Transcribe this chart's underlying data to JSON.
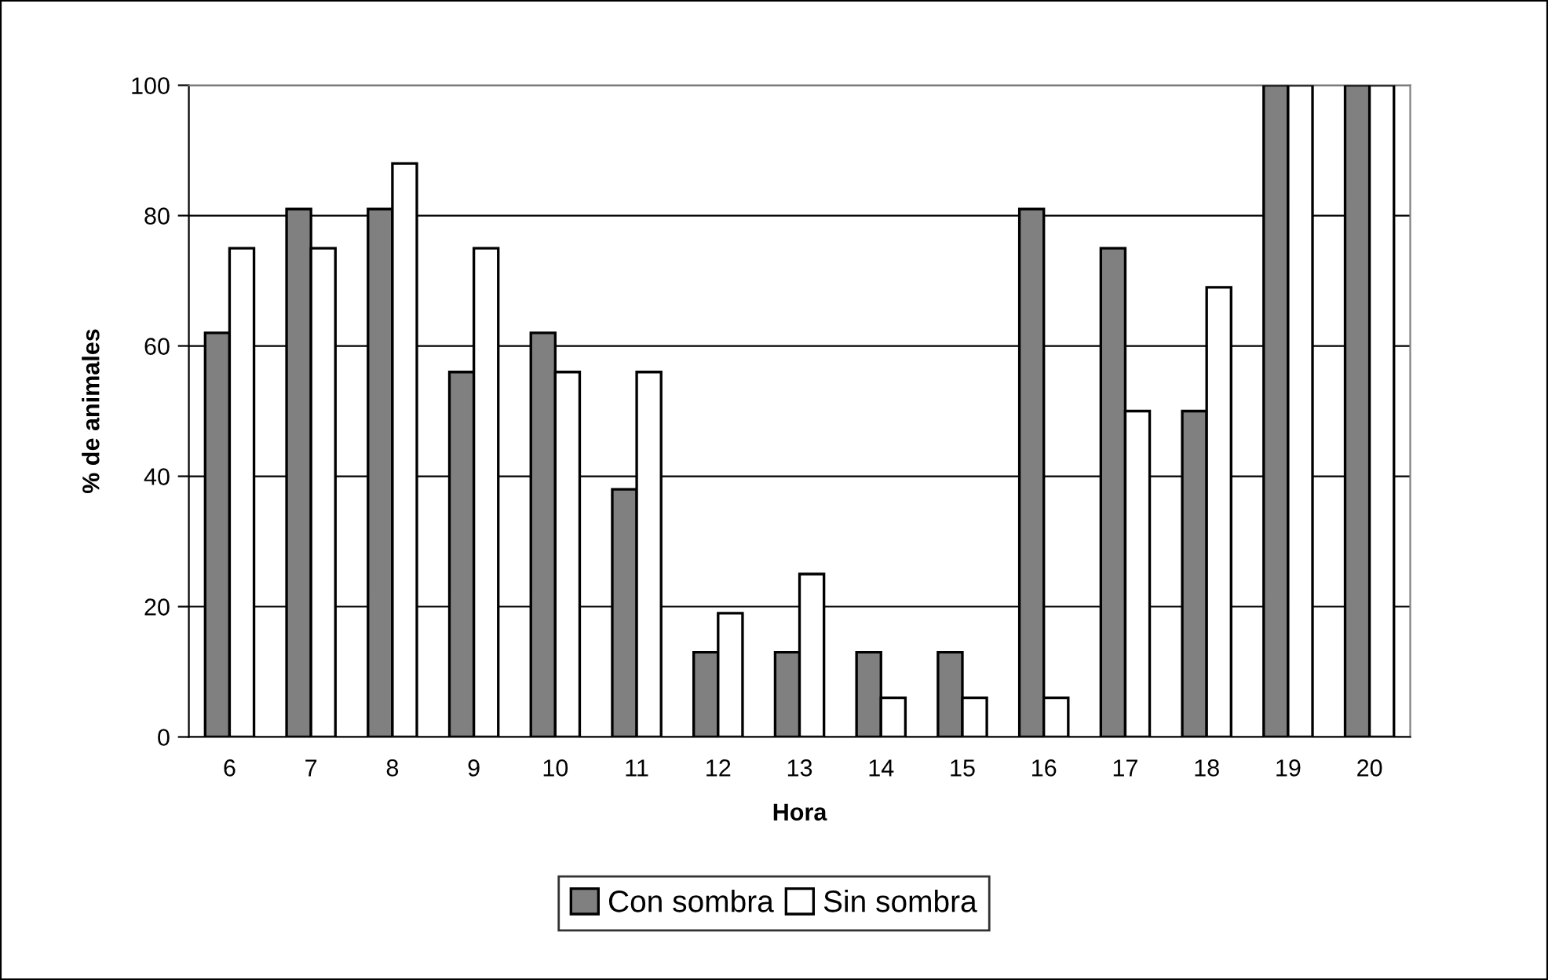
{
  "chart_data": {
    "type": "bar",
    "xlabel": "Hora",
    "ylabel": "% de animales",
    "categories": [
      "6",
      "7",
      "8",
      "9",
      "10",
      "11",
      "12",
      "13",
      "14",
      "15",
      "16",
      "17",
      "18",
      "19",
      "20"
    ],
    "series": [
      {
        "name": "Con sombra",
        "color": "#808080",
        "values": [
          62,
          81,
          81,
          56,
          62,
          38,
          13,
          13,
          13,
          13,
          81,
          75,
          50,
          100,
          100
        ]
      },
      {
        "name": "Sin sombra",
        "color": "#ffffff",
        "values": [
          75,
          75,
          88,
          75,
          56,
          56,
          19,
          25,
          6,
          6,
          6,
          50,
          69,
          100,
          100
        ]
      }
    ],
    "ylim": [
      0,
      100
    ],
    "yticks": [
      0,
      20,
      40,
      60,
      80,
      100
    ],
    "grid": "y",
    "legend": "bottom"
  }
}
